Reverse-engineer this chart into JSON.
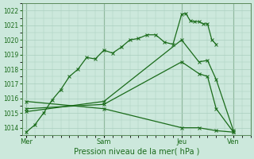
{
  "xlabel": "Pression niveau de la mer( hPa )",
  "bg_color": "#cce8dc",
  "grid_color": "#aacfbf",
  "line_color": "#1a6b1a",
  "spine_color": "#5a8a5a",
  "ylim": [
    1013.5,
    1022.5
  ],
  "yticks": [
    1014,
    1015,
    1016,
    1017,
    1018,
    1019,
    1020,
    1021,
    1022
  ],
  "xtick_labels": [
    "Mer",
    "Sam",
    "Jeu",
    "Ven"
  ],
  "xtick_positions": [
    0,
    9,
    18,
    24
  ],
  "vlines": [
    0,
    9,
    18,
    24
  ],
  "xlim": [
    -0.5,
    26
  ],
  "line1_x": [
    0,
    1,
    2,
    3,
    4,
    5,
    6,
    7,
    8,
    9,
    10,
    11,
    12,
    13,
    14,
    15,
    16,
    17,
    18,
    18.5,
    19,
    19.5,
    20,
    20.5,
    21,
    21.5,
    22
  ],
  "line1_y": [
    1013.7,
    1014.2,
    1015.0,
    1015.9,
    1016.6,
    1017.5,
    1018.0,
    1018.8,
    1018.7,
    1019.3,
    1019.1,
    1019.5,
    1020.0,
    1020.1,
    1020.35,
    1020.35,
    1019.85,
    1019.7,
    1021.75,
    1021.8,
    1021.3,
    1021.25,
    1021.25,
    1021.1,
    1021.1,
    1020.0,
    1019.7
  ],
  "line2_x": [
    0,
    9,
    18,
    20,
    21,
    22,
    24
  ],
  "line2_y": [
    1015.1,
    1015.8,
    1020.0,
    1018.5,
    1018.6,
    1017.3,
    1013.8
  ],
  "line3_x": [
    0,
    9,
    18,
    20,
    21,
    22,
    24
  ],
  "line3_y": [
    1015.3,
    1015.6,
    1018.5,
    1017.7,
    1017.5,
    1015.3,
    1013.7
  ],
  "line4_x": [
    0,
    9,
    18,
    20,
    22,
    24
  ],
  "line4_y": [
    1015.8,
    1015.3,
    1014.0,
    1014.0,
    1013.8,
    1013.7
  ]
}
